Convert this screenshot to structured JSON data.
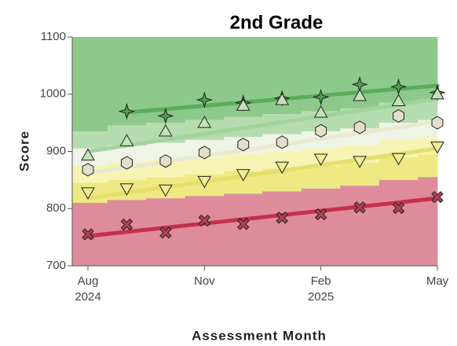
{
  "chart_data": {
    "type": "scatter",
    "title": "2nd Grade",
    "y_label": "Score",
    "x_label": "Assessment Month",
    "x": [
      "2024-08",
      "2024-09",
      "2024-10",
      "2024-11",
      "2024-12",
      "2025-01",
      "2025-02",
      "2025-03",
      "2025-04",
      "2025-05"
    ],
    "xlim": [
      "2024-08",
      "2025-05"
    ],
    "xticks": [
      {
        "value": "2024-08",
        "label": "Aug 2024"
      },
      {
        "value": "2024-11",
        "label": "Nov"
      },
      {
        "value": "2025-02",
        "label": "Feb 2025"
      },
      {
        "value": "2025-05",
        "label": "May"
      }
    ],
    "ylim": [
      700,
      1100
    ],
    "yticks": [
      700,
      800,
      900,
      1000,
      1100
    ],
    "bands": [
      {
        "color": "#8ec98c",
        "lower": [
          935,
          945,
          950,
          955,
          960,
          965,
          970,
          975,
          985,
          990
        ]
      },
      {
        "color": "#b5dcae",
        "lower": [
          905,
          910,
          915,
          920,
          925,
          930,
          935,
          940,
          950,
          955
        ]
      },
      {
        "color": "#eef4e6",
        "lower": [
          875,
          880,
          885,
          890,
          895,
          900,
          905,
          910,
          920,
          925
        ]
      },
      {
        "color": "#f6f3b4",
        "lower": [
          845,
          850,
          855,
          860,
          865,
          870,
          875,
          880,
          890,
          895
        ]
      },
      {
        "color": "#eee982",
        "lower": [
          810,
          815,
          818,
          822,
          826,
          830,
          835,
          840,
          850,
          855
        ]
      },
      {
        "color": "#de8c9b"
      }
    ],
    "series": [
      {
        "marker": "star",
        "color": "#4f9f4f",
        "line_color": "#5aad5a",
        "values": [
          null,
          970,
          962,
          990,
          985,
          993,
          995,
          1017,
          1013,
          1003
        ],
        "trend": {
          "x": [
            "2024-09",
            "2025-05"
          ],
          "values": [
            968,
            1015
          ]
        }
      },
      {
        "marker": "triangle-up",
        "color": "#c3e2bb",
        "line_color": "#a3d39d",
        "values": [
          893,
          918,
          935,
          950,
          980,
          990,
          968,
          997,
          988,
          1000
        ],
        "trend": {
          "x": [
            "2024-08",
            "2025-05"
          ],
          "values": [
            900,
            992
          ]
        }
      },
      {
        "marker": "hexagon",
        "color": "#e2dfcb",
        "line_color": "#e9e9d2",
        "values": [
          868,
          880,
          883,
          898,
          912,
          916,
          936,
          942,
          962,
          950
        ],
        "trend": {
          "x": [
            "2024-08",
            "2025-05"
          ],
          "values": [
            862,
            952
          ]
        }
      },
      {
        "marker": "triangle-down",
        "color": "#f0ec92",
        "line_color": "#e4de6c",
        "values": [
          828,
          835,
          833,
          848,
          860,
          873,
          887,
          883,
          888,
          908
        ],
        "trend": {
          "x": [
            "2024-08",
            "2025-05"
          ],
          "values": [
            818,
            905
          ]
        }
      },
      {
        "marker": "x",
        "color": "#b3404f",
        "line_color": "#c4304c",
        "values": [
          755,
          772,
          758,
          779,
          773,
          784,
          790,
          802,
          801,
          820
        ],
        "trend": {
          "x": [
            "2024-08",
            "2025-05"
          ],
          "values": [
            752,
            818
          ]
        }
      }
    ]
  }
}
